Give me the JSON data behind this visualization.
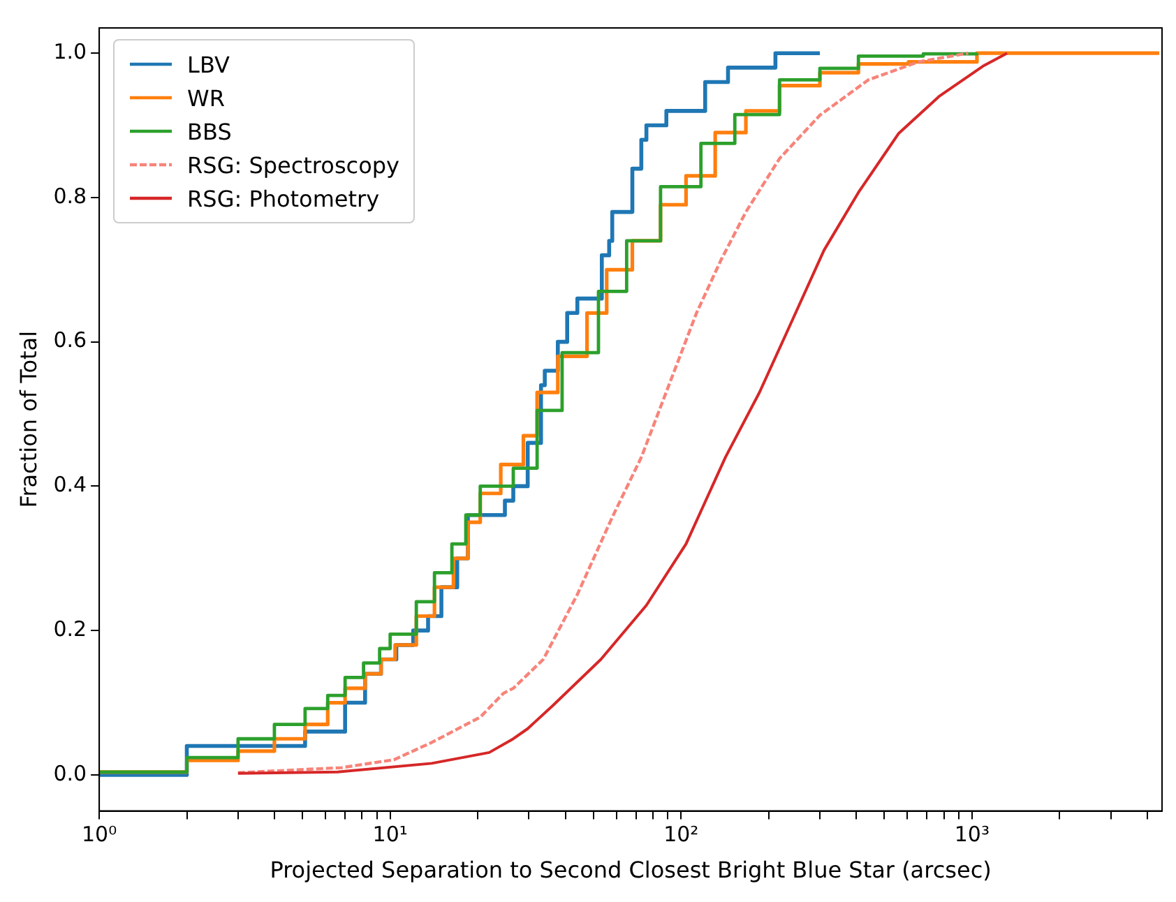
{
  "chart_data": {
    "type": "step",
    "xlabel": "Projected Separation to Second Closest Bright Blue Star (arcsec)",
    "ylabel": "Fraction of Total",
    "log": "x",
    "legend": "top left",
    "xlim": [
      1,
      4500
    ],
    "ylim": [
      -0.05,
      1.035
    ],
    "xticks": [
      {
        "value": 1,
        "label": "10⁰"
      },
      {
        "value": 2,
        "label": null
      },
      {
        "value": 3,
        "label": null
      },
      {
        "value": 4,
        "label": null
      },
      {
        "value": 5,
        "label": null
      },
      {
        "value": 6,
        "label": null
      },
      {
        "value": 7,
        "label": null
      },
      {
        "value": 8,
        "label": null
      },
      {
        "value": 9,
        "label": null
      },
      {
        "value": 10,
        "label": "10¹"
      },
      {
        "value": 20,
        "label": null
      },
      {
        "value": 30,
        "label": null
      },
      {
        "value": 40,
        "label": null
      },
      {
        "value": 50,
        "label": null
      },
      {
        "value": 60,
        "label": null
      },
      {
        "value": 70,
        "label": null
      },
      {
        "value": 80,
        "label": null
      },
      {
        "value": 90,
        "label": null
      },
      {
        "value": 100,
        "label": "10²"
      },
      {
        "value": 200,
        "label": null
      },
      {
        "value": 300,
        "label": null
      },
      {
        "value": 400,
        "label": null
      },
      {
        "value": 500,
        "label": null
      },
      {
        "value": 600,
        "label": null
      },
      {
        "value": 700,
        "label": null
      },
      {
        "value": 800,
        "label": null
      },
      {
        "value": 900,
        "label": null
      },
      {
        "value": 1000,
        "label": "10³"
      },
      {
        "value": 2000,
        "label": null
      },
      {
        "value": 3000,
        "label": null
      },
      {
        "value": 4000,
        "label": null
      }
    ],
    "yticks": [
      {
        "value": 0,
        "label": "0.0"
      },
      {
        "value": 0.2,
        "label": "0.2"
      },
      {
        "value": 0.4,
        "label": "0.4"
      },
      {
        "value": 0.6,
        "label": "0.6"
      },
      {
        "value": 0.8,
        "label": "0.8"
      },
      {
        "value": 1,
        "label": "1.0"
      }
    ],
    "series": [
      {
        "name": "LBV",
        "color": "#1f77b4",
        "x": [
          1,
          2,
          5.1,
          7,
          8.2,
          9.3,
          10.5,
          12,
          13.5,
          15,
          17,
          18.5,
          24.8,
          26.5,
          29.7,
          33,
          34,
          37.7,
          40.6,
          44,
          53.4,
          56.6,
          58,
          68,
          73,
          76,
          89,
          121,
          145,
          211,
          300
        ],
        "values": [
          0,
          0.04,
          0.06,
          0.1,
          0.14,
          0.16,
          0.18,
          0.2,
          0.22,
          0.26,
          0.3,
          0.36,
          0.38,
          0.4,
          0.46,
          0.54,
          0.56,
          0.6,
          0.64,
          0.66,
          0.72,
          0.74,
          0.78,
          0.84,
          0.88,
          0.9,
          0.92,
          0.96,
          0.98,
          1,
          1
        ]
      },
      {
        "name": "WR",
        "color": "#ff7f0e",
        "x": [
          1,
          2,
          3,
          4,
          5.1,
          6.1,
          7,
          8.2,
          9.3,
          10.4,
          12.3,
          14.2,
          16.5,
          18.5,
          20.4,
          24,
          28.7,
          32,
          37.7,
          47.5,
          55.5,
          68,
          85,
          104,
          131,
          167,
          218,
          300,
          407,
          605,
          1040,
          4400
        ],
        "values": [
          0.004,
          0.02,
          0.033,
          0.05,
          0.07,
          0.1,
          0.12,
          0.14,
          0.16,
          0.18,
          0.22,
          0.26,
          0.3,
          0.35,
          0.39,
          0.43,
          0.47,
          0.53,
          0.58,
          0.64,
          0.7,
          0.74,
          0.79,
          0.83,
          0.89,
          0.92,
          0.955,
          0.973,
          0.985,
          0.988,
          1,
          1
        ]
      },
      {
        "name": "BBS",
        "color": "#2ca02c",
        "x": [
          1,
          2,
          3,
          4,
          5.1,
          6.1,
          7,
          8.1,
          9.2,
          10,
          12.3,
          14.2,
          16.3,
          18.2,
          20.4,
          26.5,
          32,
          39,
          52,
          65,
          85,
          117,
          153,
          218,
          300,
          407,
          680,
          1040
        ],
        "values": [
          0.004,
          0.024,
          0.05,
          0.07,
          0.092,
          0.11,
          0.135,
          0.155,
          0.175,
          0.195,
          0.24,
          0.28,
          0.32,
          0.36,
          0.4,
          0.425,
          0.505,
          0.585,
          0.67,
          0.74,
          0.815,
          0.875,
          0.915,
          0.963,
          0.979,
          0.996,
          0.999,
          1
        ]
      },
      {
        "name": "RSG: Spectroscopy",
        "color": "#f7847a",
        "type": "line",
        "line_style": "dashed",
        "x": [
          3,
          6.8,
          10.3,
          13.9,
          20.4,
          24.5,
          26.5,
          33.6,
          44,
          58,
          73,
          92,
          113,
          137,
          167,
          218,
          300,
          440,
          655,
          970
        ],
        "values": [
          0.003,
          0.01,
          0.021,
          0.045,
          0.08,
          0.113,
          0.12,
          0.16,
          0.25,
          0.357,
          0.44,
          0.546,
          0.64,
          0.713,
          0.78,
          0.854,
          0.914,
          0.963,
          0.988,
          1
        ]
      },
      {
        "name": "RSG: Photometry",
        "color": "#d62728",
        "type": "line",
        "x": [
          3,
          6.6,
          13.9,
          21.9,
          26.5,
          29.7,
          36,
          53,
          76,
          104,
          142,
          186,
          235,
          310,
          407,
          560,
          770,
          1090,
          1320
        ],
        "values": [
          0.002,
          0.004,
          0.016,
          0.031,
          0.05,
          0.064,
          0.095,
          0.16,
          0.235,
          0.32,
          0.44,
          0.53,
          0.62,
          0.727,
          0.807,
          0.889,
          0.94,
          0.982,
          1
        ]
      }
    ]
  }
}
